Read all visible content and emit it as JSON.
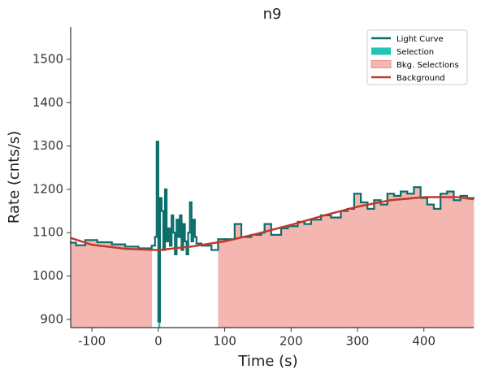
{
  "chart_data": {
    "type": "step",
    "title": "n9",
    "xlabel": "Time (s)",
    "ylabel": "Rate (cnts/s)",
    "xlim": [
      -132,
      475
    ],
    "ylim": [
      881,
      1575
    ],
    "xticks": [
      -100,
      0,
      100,
      200,
      300,
      400
    ],
    "yticks": [
      900,
      1000,
      1100,
      1200,
      1300,
      1400,
      1500
    ],
    "legend": "upper right",
    "light_curve": {
      "name": "Light Curve",
      "color": "#0b6e6b",
      "bins": [
        -132,
        -124,
        -110,
        -92,
        -70,
        -50,
        -30,
        -10,
        -5,
        -2.5,
        0,
        2.5,
        5,
        7.5,
        10,
        12.5,
        15,
        17.5,
        20,
        22.5,
        25,
        27.5,
        30,
        32.5,
        35,
        37.5,
        40,
        42.5,
        45,
        47.5,
        50,
        52.5,
        55,
        57.5,
        60,
        65,
        80,
        90,
        100,
        115,
        125,
        140,
        155,
        160,
        170,
        185,
        195,
        210,
        220,
        230,
        245,
        260,
        275,
        285,
        295,
        305,
        315,
        325,
        335,
        345,
        355,
        365,
        375,
        385,
        395,
        405,
        415,
        425,
        435,
        445,
        455,
        465,
        475
      ],
      "values": [
        1077,
        1071,
        1083,
        1078,
        1073,
        1068,
        1064,
        1070,
        1090,
        1310,
        895,
        1180,
        1150,
        1060,
        1200,
        1080,
        1110,
        1070,
        1140,
        1100,
        1050,
        1130,
        1090,
        1140,
        1060,
        1120,
        1080,
        1050,
        1100,
        1170,
        1080,
        1130,
        1090,
        1075,
        1075,
        1070,
        1060,
        1085,
        1085,
        1120,
        1090,
        1095,
        1100,
        1120,
        1095,
        1110,
        1115,
        1125,
        1120,
        1130,
        1140,
        1135,
        1150,
        1155,
        1190,
        1170,
        1155,
        1175,
        1165,
        1190,
        1185,
        1195,
        1190,
        1205,
        1180,
        1165,
        1155,
        1190,
        1195,
        1175,
        1185,
        1180
      ]
    },
    "selection": {
      "name": "Selection",
      "color": "#22c2b5",
      "range": [
        0,
        2.5
      ]
    },
    "bkg_selections": {
      "name": "Bkg. Selections",
      "color": "#f4b6b0",
      "ranges": [
        [
          -132,
          -10
        ],
        [
          90,
          475
        ]
      ]
    },
    "background": {
      "name": "Background",
      "color": "#c0392b",
      "x": [
        -132,
        -100,
        -50,
        0,
        50,
        100,
        150,
        200,
        250,
        300,
        350,
        400,
        450,
        475
      ],
      "values": [
        1088,
        1072,
        1063,
        1060,
        1068,
        1080,
        1098,
        1118,
        1140,
        1160,
        1175,
        1182,
        1182,
        1177
      ]
    }
  }
}
